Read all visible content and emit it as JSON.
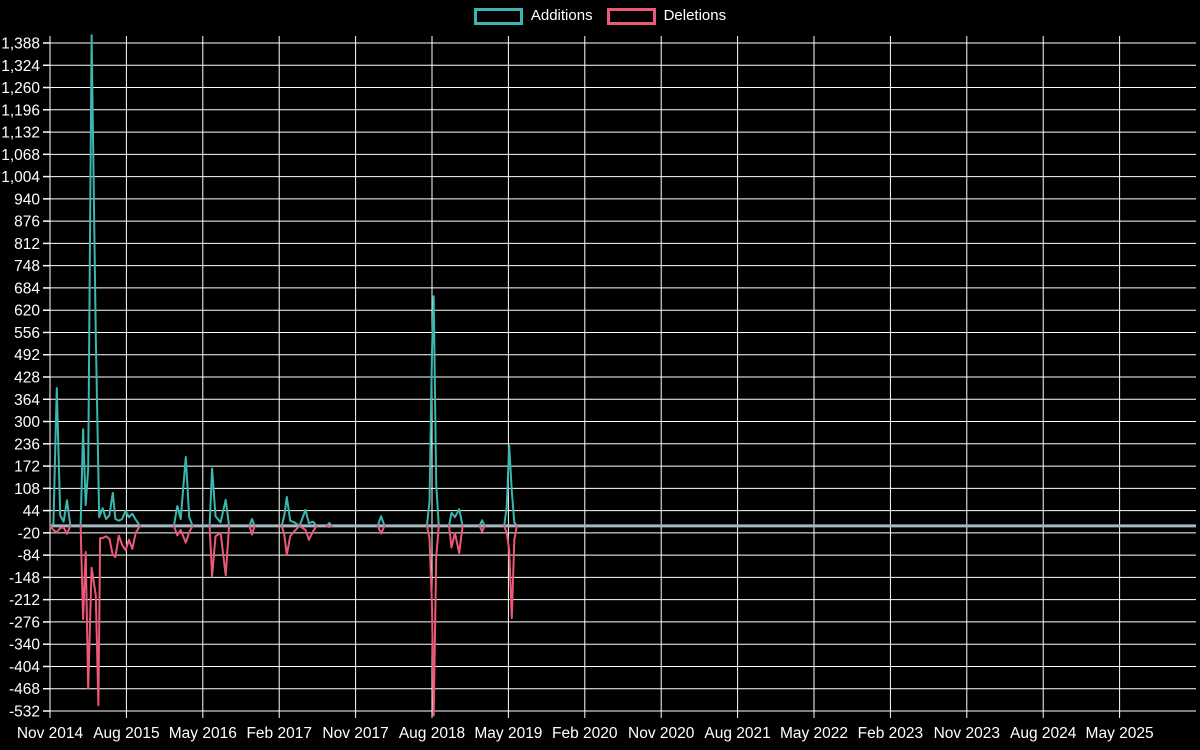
{
  "chart_data": {
    "type": "line",
    "title": "",
    "xlabel": "",
    "ylabel": "",
    "background_color": "#000000",
    "grid_color": "#ffffff",
    "text_color": "#ffffff",
    "zero_line_color": "#a3b8c2",
    "grid": true,
    "legend_position": "top-center",
    "legend": [
      {
        "name": "Additions",
        "color": "#3bb7af"
      },
      {
        "name": "Deletions",
        "color": "#ec5877"
      }
    ],
    "ylim": [
      -532,
      1388
    ],
    "y_tick_step": 64,
    "y_ticks": [
      1388,
      1324,
      1260,
      1196,
      1132,
      1068,
      1004,
      940,
      876,
      812,
      748,
      684,
      620,
      556,
      492,
      428,
      364,
      300,
      236,
      172,
      108,
      44,
      -20,
      -84,
      -148,
      -212,
      -276,
      -340,
      -404,
      -468,
      -532
    ],
    "y_tick_labels": [
      "1,388",
      "1,324",
      "1,260",
      "1,196",
      "1,132",
      "1,068",
      "1,004",
      "940",
      "876",
      "812",
      "748",
      "684",
      "620",
      "556",
      "492",
      "428",
      "364",
      "300",
      "236",
      "172",
      "108",
      "44",
      "-20",
      "-84",
      "-148",
      "-212",
      "-276",
      "-340",
      "-404",
      "-468",
      "-532"
    ],
    "x_ticks": [
      "Nov 2014",
      "Aug 2015",
      "May 2016",
      "Feb 2017",
      "Nov 2017",
      "Aug 2018",
      "May 2019",
      "Feb 2020",
      "Nov 2020",
      "Aug 2021",
      "May 2022",
      "Feb 2023",
      "Nov 2023",
      "Aug 2024",
      "May 2025"
    ],
    "x_months_per_tick": 9,
    "x_total_months": 135,
    "x_unit": "months since Nov 2014; values are weekly additions/deletions, 0 everywhere outside listed segments",
    "series": [
      {
        "name": "Additions",
        "color": "#3bb7af",
        "segments": [
          [
            [
              0,
              0
            ],
            [
              0.4,
              5
            ],
            [
              0.8,
              396
            ],
            [
              1.2,
              30
            ],
            [
              1.6,
              12
            ],
            [
              2.0,
              74
            ],
            [
              2.4,
              0
            ]
          ],
          [
            [
              3.6,
              0
            ],
            [
              3.9,
              278
            ],
            [
              4.2,
              60
            ],
            [
              4.5,
              165
            ],
            [
              4.9,
              1410
            ],
            [
              5.4,
              545
            ],
            [
              5.8,
              25
            ],
            [
              6.2,
              51
            ],
            [
              6.6,
              20
            ],
            [
              7.0,
              30
            ],
            [
              7.4,
              95
            ],
            [
              7.7,
              20
            ],
            [
              8.1,
              15
            ],
            [
              8.5,
              20
            ],
            [
              8.9,
              43
            ],
            [
              9.3,
              25
            ],
            [
              9.7,
              35
            ],
            [
              10.1,
              18
            ],
            [
              10.6,
              0
            ]
          ],
          [
            [
              14.6,
              0
            ],
            [
              15.0,
              57
            ],
            [
              15.4,
              20
            ],
            [
              16.0,
              198
            ],
            [
              16.4,
              25
            ],
            [
              16.8,
              0
            ]
          ],
          [
            [
              18.8,
              0
            ],
            [
              19.1,
              165
            ],
            [
              19.5,
              28
            ],
            [
              20.1,
              10
            ],
            [
              20.7,
              75
            ],
            [
              21.1,
              0
            ]
          ],
          [
            [
              23.5,
              0
            ],
            [
              23.8,
              20
            ],
            [
              24.1,
              0
            ]
          ],
          [
            [
              27.3,
              0
            ],
            [
              27.6,
              30
            ],
            [
              27.9,
              83
            ],
            [
              28.3,
              15
            ],
            [
              28.8,
              10
            ],
            [
              29.4,
              0
            ],
            [
              30.1,
              46
            ],
            [
              30.5,
              8
            ],
            [
              31.0,
              12
            ],
            [
              31.4,
              0
            ]
          ],
          [
            [
              32.6,
              0
            ],
            [
              32.9,
              8
            ],
            [
              33.2,
              0
            ]
          ],
          [
            [
              38.6,
              0
            ],
            [
              39.0,
              28
            ],
            [
              39.4,
              0
            ]
          ],
          [
            [
              44.4,
              0
            ],
            [
              44.7,
              70
            ],
            [
              45.0,
              500
            ],
            [
              45.2,
              660
            ],
            [
              45.5,
              120
            ],
            [
              45.8,
              0
            ]
          ],
          [
            [
              47.0,
              0
            ],
            [
              47.3,
              38
            ],
            [
              47.7,
              25
            ],
            [
              48.2,
              48
            ],
            [
              48.6,
              0
            ]
          ],
          [
            [
              50.6,
              0
            ],
            [
              50.9,
              16
            ],
            [
              51.2,
              0
            ]
          ],
          [
            [
              53.5,
              0
            ],
            [
              53.8,
              55
            ],
            [
              54.1,
              230
            ],
            [
              54.4,
              100
            ],
            [
              54.7,
              10
            ],
            [
              55.0,
              0
            ]
          ]
        ]
      },
      {
        "name": "Deletions",
        "color": "#ec5877",
        "segments": [
          [
            [
              0,
              0
            ],
            [
              0.4,
              -12
            ],
            [
              0.8,
              -18
            ],
            [
              1.2,
              -6
            ],
            [
              1.6,
              -4
            ],
            [
              2.0,
              -23
            ],
            [
              2.4,
              0
            ]
          ],
          [
            [
              3.6,
              0
            ],
            [
              3.9,
              -268
            ],
            [
              4.2,
              -75
            ],
            [
              4.5,
              -468
            ],
            [
              4.9,
              -120
            ],
            [
              5.4,
              -200
            ],
            [
              5.7,
              -515
            ],
            [
              5.9,
              -35
            ],
            [
              6.2,
              -35
            ],
            [
              6.6,
              -30
            ],
            [
              7.0,
              -37
            ],
            [
              7.4,
              -84
            ],
            [
              7.7,
              -89
            ],
            [
              8.1,
              -28
            ],
            [
              8.5,
              -55
            ],
            [
              8.9,
              -70
            ],
            [
              9.3,
              -40
            ],
            [
              9.7,
              -66
            ],
            [
              10.1,
              -20
            ],
            [
              10.6,
              0
            ]
          ],
          [
            [
              14.6,
              0
            ],
            [
              15.0,
              -27
            ],
            [
              15.4,
              -12
            ],
            [
              16.0,
              -48
            ],
            [
              16.4,
              -18
            ],
            [
              16.8,
              0
            ]
          ],
          [
            [
              18.8,
              0
            ],
            [
              19.1,
              -145
            ],
            [
              19.5,
              -30
            ],
            [
              20.1,
              -20
            ],
            [
              20.7,
              -142
            ],
            [
              21.1,
              0
            ]
          ],
          [
            [
              23.5,
              0
            ],
            [
              23.8,
              -25
            ],
            [
              24.1,
              0
            ]
          ],
          [
            [
              27.3,
              0
            ],
            [
              27.6,
              -25
            ],
            [
              27.9,
              -84
            ],
            [
              28.3,
              -30
            ],
            [
              28.8,
              -15
            ],
            [
              29.4,
              0
            ],
            [
              30.1,
              -12
            ],
            [
              30.5,
              -40
            ],
            [
              31.0,
              -15
            ],
            [
              31.4,
              0
            ]
          ],
          [
            [
              32.6,
              0
            ],
            [
              32.9,
              -3
            ],
            [
              33.2,
              0
            ]
          ],
          [
            [
              38.6,
              0
            ],
            [
              39.0,
              -22
            ],
            [
              39.4,
              0
            ]
          ],
          [
            [
              44.4,
              0
            ],
            [
              44.7,
              -35
            ],
            [
              45.0,
              -230
            ],
            [
              45.2,
              -545
            ],
            [
              45.5,
              -90
            ],
            [
              45.8,
              0
            ]
          ],
          [
            [
              47.0,
              0
            ],
            [
              47.3,
              -62
            ],
            [
              47.7,
              -20
            ],
            [
              48.2,
              -78
            ],
            [
              48.6,
              0
            ]
          ],
          [
            [
              50.6,
              0
            ],
            [
              50.9,
              -16
            ],
            [
              51.2,
              0
            ]
          ],
          [
            [
              53.5,
              0
            ],
            [
              53.8,
              -20
            ],
            [
              54.1,
              -70
            ],
            [
              54.4,
              -265
            ],
            [
              54.7,
              -40
            ],
            [
              55.0,
              0
            ]
          ]
        ]
      }
    ]
  }
}
